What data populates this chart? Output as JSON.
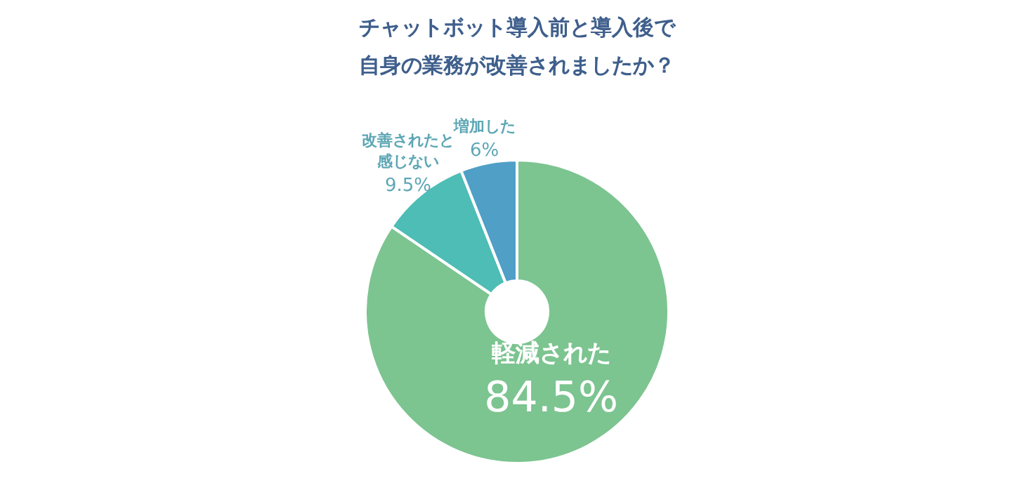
{
  "chart_data": {
    "type": "donut",
    "title": "チャットボット導入前と導入後で自身の業務が改善されましたか？",
    "categories": [
      "軽減された",
      "改善されたと感じない",
      "増加した"
    ],
    "values": [
      84.5,
      9.5,
      6
    ],
    "colors": [
      "#7cc490",
      "#4dbdb5",
      "#4f9fc6"
    ],
    "value_labels": [
      "84.5%",
      "9.5%",
      "6%"
    ]
  }
}
